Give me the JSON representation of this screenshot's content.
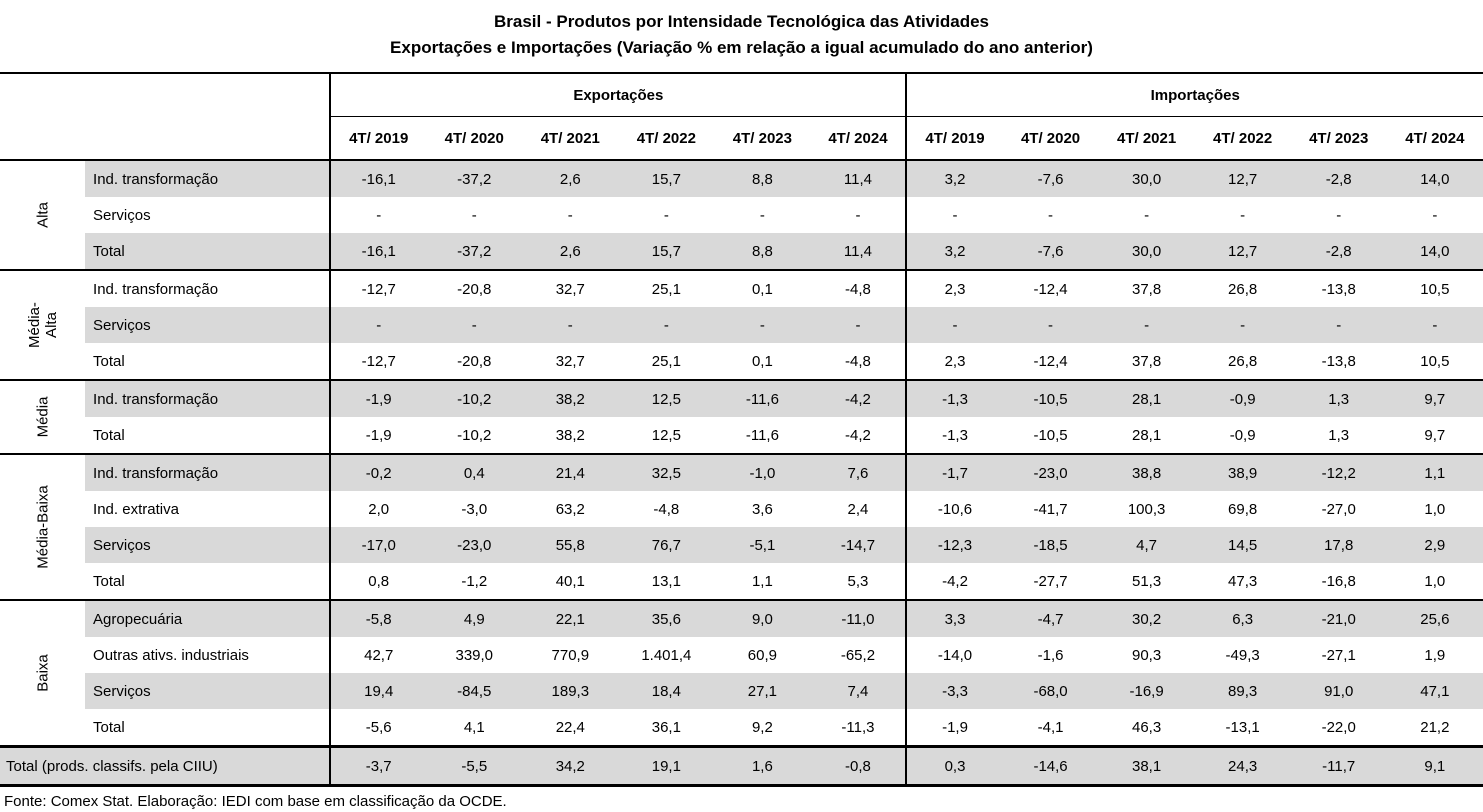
{
  "title": "Brasil - Produtos por Intensidade Tecnológica das Atividades",
  "subtitle": "Exportações e Importações (Variação % em relação a igual acumulado do ano anterior)",
  "header": {
    "exportacoes": "Exportações",
    "importacoes": "Importações",
    "periods": [
      "4T/ 2019",
      "4T/ 2020",
      "4T/ 2021",
      "4T/ 2022",
      "4T/ 2023",
      "4T/ 2024"
    ]
  },
  "groups": [
    {
      "label": "Alta",
      "label_wrap": false,
      "rows": [
        {
          "category": "Ind. transformação",
          "exp": [
            "-16,1",
            "-37,2",
            "2,6",
            "15,7",
            "8,8",
            "11,4"
          ],
          "imp": [
            "3,2",
            "-7,6",
            "30,0",
            "12,7",
            "-2,8",
            "14,0"
          ]
        },
        {
          "category": "Serviços",
          "exp": [
            "-",
            "-",
            "-",
            "-",
            "-",
            "-"
          ],
          "imp": [
            "-",
            "-",
            "-",
            "-",
            "-",
            "-"
          ]
        },
        {
          "category": "Total",
          "exp": [
            "-16,1",
            "-37,2",
            "2,6",
            "15,7",
            "8,8",
            "11,4"
          ],
          "imp": [
            "3,2",
            "-7,6",
            "30,0",
            "12,7",
            "-2,8",
            "14,0"
          ]
        }
      ]
    },
    {
      "label": "Média-Alta",
      "label_wrap": true,
      "rows": [
        {
          "category": "Ind. transformação",
          "exp": [
            "-12,7",
            "-20,8",
            "32,7",
            "25,1",
            "0,1",
            "-4,8"
          ],
          "imp": [
            "2,3",
            "-12,4",
            "37,8",
            "26,8",
            "-13,8",
            "10,5"
          ]
        },
        {
          "category": "Serviços",
          "exp": [
            "-",
            "-",
            "-",
            "-",
            "-",
            "-"
          ],
          "imp": [
            "-",
            "-",
            "-",
            "-",
            "-",
            "-"
          ]
        },
        {
          "category": "Total",
          "exp": [
            "-12,7",
            "-20,8",
            "32,7",
            "25,1",
            "0,1",
            "-4,8"
          ],
          "imp": [
            "2,3",
            "-12,4",
            "37,8",
            "26,8",
            "-13,8",
            "10,5"
          ]
        }
      ]
    },
    {
      "label": "Média",
      "label_wrap": false,
      "rows": [
        {
          "category": "Ind. transformação",
          "exp": [
            "-1,9",
            "-10,2",
            "38,2",
            "12,5",
            "-11,6",
            "-4,2"
          ],
          "imp": [
            "-1,3",
            "-10,5",
            "28,1",
            "-0,9",
            "1,3",
            "9,7"
          ]
        },
        {
          "category": "Total",
          "exp": [
            "-1,9",
            "-10,2",
            "38,2",
            "12,5",
            "-11,6",
            "-4,2"
          ],
          "imp": [
            "-1,3",
            "-10,5",
            "28,1",
            "-0,9",
            "1,3",
            "9,7"
          ]
        }
      ]
    },
    {
      "label": "Média-Baixa",
      "label_wrap": false,
      "rows": [
        {
          "category": "Ind. transformação",
          "exp": [
            "-0,2",
            "0,4",
            "21,4",
            "32,5",
            "-1,0",
            "7,6"
          ],
          "imp": [
            "-1,7",
            "-23,0",
            "38,8",
            "38,9",
            "-12,2",
            "1,1"
          ]
        },
        {
          "category": "Ind. extrativa",
          "exp": [
            "2,0",
            "-3,0",
            "63,2",
            "-4,8",
            "3,6",
            "2,4"
          ],
          "imp": [
            "-10,6",
            "-41,7",
            "100,3",
            "69,8",
            "-27,0",
            "1,0"
          ]
        },
        {
          "category": "Serviços",
          "exp": [
            "-17,0",
            "-23,0",
            "55,8",
            "76,7",
            "-5,1",
            "-14,7"
          ],
          "imp": [
            "-12,3",
            "-18,5",
            "4,7",
            "14,5",
            "17,8",
            "2,9"
          ]
        },
        {
          "category": "Total",
          "exp": [
            "0,8",
            "-1,2",
            "40,1",
            "13,1",
            "1,1",
            "5,3"
          ],
          "imp": [
            "-4,2",
            "-27,7",
            "51,3",
            "47,3",
            "-16,8",
            "1,0"
          ]
        }
      ]
    },
    {
      "label": "Baixa",
      "label_wrap": false,
      "rows": [
        {
          "category": "Agropecuária",
          "exp": [
            "-5,8",
            "4,9",
            "22,1",
            "35,6",
            "9,0",
            "-11,0"
          ],
          "imp": [
            "3,3",
            "-4,7",
            "30,2",
            "6,3",
            "-21,0",
            "25,6"
          ]
        },
        {
          "category": "Outras ativs. industriais",
          "exp": [
            "42,7",
            "339,0",
            "770,9",
            "1.401,4",
            "60,9",
            "-65,2"
          ],
          "imp": [
            "-14,0",
            "-1,6",
            "90,3",
            "-49,3",
            "-27,1",
            "1,9"
          ]
        },
        {
          "category": "Serviços",
          "exp": [
            "19,4",
            "-84,5",
            "189,3",
            "18,4",
            "27,1",
            "7,4"
          ],
          "imp": [
            "-3,3",
            "-68,0",
            "-16,9",
            "89,3",
            "91,0",
            "47,1"
          ]
        },
        {
          "category": "Total",
          "exp": [
            "-5,6",
            "4,1",
            "22,4",
            "36,1",
            "9,2",
            "-11,3"
          ],
          "imp": [
            "-1,9",
            "-4,1",
            "46,3",
            "-13,1",
            "-22,0",
            "21,2"
          ]
        }
      ]
    }
  ],
  "total_row": {
    "label": "Total (prods. classifs. pela CIIU)",
    "exp": [
      "-3,7",
      "-5,5",
      "34,2",
      "19,1",
      "1,6",
      "-0,8"
    ],
    "imp": [
      "0,3",
      "-14,6",
      "38,1",
      "24,3",
      "-11,7",
      "9,1"
    ]
  },
  "footer": "Fonte: Comex Stat. Elaboração: IEDI com base em classificação da OCDE.",
  "colors": {
    "row_shade": "#d9d9d9",
    "border": "#000000",
    "text": "#000000",
    "background": "#ffffff"
  }
}
